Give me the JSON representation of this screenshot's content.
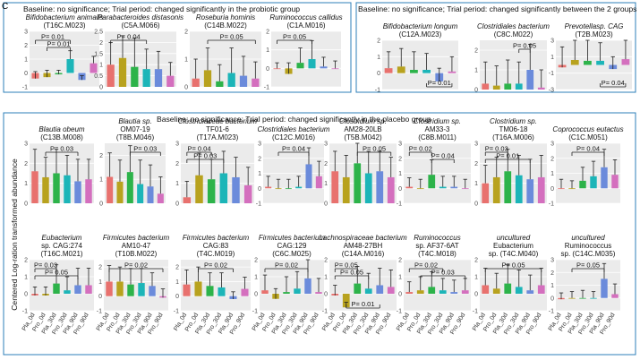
{
  "panel_letter": "C",
  "ylabel": "Centered Log-ration transformed abundance",
  "group_labels": [
    "Pla_0d",
    "Pro_0d",
    "Pla_30d",
    "Pro_30d",
    "Pla_90d",
    "Pro_90d"
  ],
  "colors": [
    "#E8716E",
    "#B8A21E",
    "#2DB34A",
    "#1CB5B8",
    "#6B8BDB",
    "#D46FBE"
  ],
  "section_titles": {
    "probiotic": "Baseline: no significance; Trial period: changed significantly in the probiotic group",
    "between": "Baseline: no significance; Trial period: changed significantly between the 2 groups",
    "placebo": "Baseline: no significance; Trial period: changed significantly in the placebo group"
  },
  "chart_data": [
    {
      "type": "bar",
      "title": [
        "Bifidobacterium animalis",
        "(T16C.M023)"
      ],
      "categories": [
        "Pla_0d",
        "Pro_0d",
        "Pla_30d",
        "Pro_30d",
        "Pla_90d",
        "Pro_90d"
      ],
      "values": [
        -0.4,
        -0.3,
        -0.1,
        1.0,
        -0.5,
        0.7
      ],
      "errors": [
        0.5,
        0.5,
        0.3,
        0.6,
        0.3,
        0.5
      ],
      "ylim": [
        -1,
        3
      ],
      "yticks": [
        -1,
        0,
        1,
        2,
        3
      ],
      "annotations": [
        {
          "text": "P= 0.01",
          "from": 0,
          "to": 3
        },
        {
          "text": "P= 0.01",
          "from": 1,
          "to": 3
        }
      ]
    },
    {
      "type": "bar",
      "title": [
        "Parabacteroides distasonis",
        "(C5A.M066)"
      ],
      "categories": [
        "Pla_0d",
        "Pro_0d",
        "Pla_30d",
        "Pro_30d",
        "Pla_90d",
        "Pro_90d"
      ],
      "values": [
        1.0,
        1.3,
        0.9,
        0.8,
        0.8,
        0.5
      ],
      "errors": [
        1.0,
        1.0,
        1.3,
        0.9,
        0.8,
        0.6
      ],
      "ylim": [
        0,
        2.5
      ],
      "yticks": [
        0,
        0.5,
        1,
        1.5,
        2,
        2.5
      ],
      "annotations": [
        {
          "text": "P= 0.04",
          "from": 0,
          "to": 3
        }
      ]
    },
    {
      "type": "bar",
      "title": [
        "Roseburia hominis",
        "(C14B.M022)"
      ],
      "categories": [
        "Pla_0d",
        "Pro_0d",
        "Pla_30d",
        "Pro_30d",
        "Pla_90d",
        "Pro_90d"
      ],
      "values": [
        0.3,
        0.6,
        0.2,
        0.5,
        0.4,
        0.3
      ],
      "errors": [
        0.7,
        0.8,
        0.6,
        0.9,
        0.7,
        0.6
      ],
      "ylim": [
        0,
        2
      ],
      "yticks": [
        0,
        1,
        2
      ],
      "annotations": [
        {
          "text": "P= 0.05",
          "from": 1,
          "to": 5
        }
      ]
    },
    {
      "type": "bar",
      "title": [
        "Ruminococcus callidus",
        "(C1A.M016)"
      ],
      "categories": [
        "Pla_0d",
        "Pro_0d",
        "Pla_30d",
        "Pro_30d",
        "Pla_90d",
        "Pro_90d"
      ],
      "values": [
        0.0,
        -0.3,
        0.3,
        0.5,
        0.1,
        0.0
      ],
      "errors": [
        0.3,
        0.6,
        0.8,
        1.0,
        0.5,
        0.4
      ],
      "ylim": [
        -1,
        2
      ],
      "yticks": [
        -1,
        0,
        1,
        2
      ],
      "annotations": [
        {
          "text": "P= 0.05",
          "from": 0,
          "to": 3
        }
      ]
    },
    {
      "type": "bar",
      "title": [
        "Bifidobacterium longum",
        "(C12A.M023)"
      ],
      "categories": [
        "Pla_0d",
        "Pro_0d",
        "Pla_30d",
        "Pro_30d",
        "Pla_90d",
        "Pro_90d"
      ],
      "values": [
        0.3,
        0.4,
        0.2,
        0.2,
        -0.5,
        0.1
      ],
      "errors": [
        1.0,
        1.1,
        1.1,
        1.0,
        0.8,
        0.9
      ],
      "ylim": [
        -1,
        2
      ],
      "yticks": [
        -1,
        0,
        1,
        2
      ],
      "annotations": [
        {
          "text": "P= 0.01",
          "from": 3,
          "to": 5,
          "below": true
        }
      ]
    },
    {
      "type": "bar",
      "title": [
        "Clostridiales bacterium",
        "(C8C.M022)"
      ],
      "categories": [
        "Pla_0d",
        "Pro_0d",
        "Pla_30d",
        "Pro_30d",
        "Pla_90d",
        "Pro_90d"
      ],
      "values": [
        0.3,
        0.2,
        0.3,
        0.3,
        1.0,
        0.1
      ],
      "errors": [
        1.1,
        1.0,
        1.2,
        1.1,
        1.3,
        0.9
      ],
      "ylim": [
        0,
        2.5
      ],
      "yticks": [
        0,
        1,
        2
      ],
      "annotations": [
        {
          "text": "P= 0.05",
          "from": 3,
          "to": 4
        }
      ]
    },
    {
      "type": "bar",
      "title": [
        "Prevotellasp. CAG",
        "(T2B.M023)"
      ],
      "categories": [
        "Pla_0d",
        "Pro_0d",
        "Pla_30d",
        "Pro_30d",
        "Pla_90d",
        "Pro_90d"
      ],
      "values": [
        -0.3,
        0.6,
        0.5,
        0.5,
        -0.5,
        0.7
      ],
      "errors": [
        2.5,
        2.4,
        2.6,
        2.2,
        1.5,
        2.3
      ],
      "ylim": [
        -3,
        3
      ],
      "yticks": [
        -3,
        -1,
        1,
        3
      ],
      "annotations": [
        {
          "text": "P= 0.04",
          "from": 3,
          "to": 5,
          "below": true
        }
      ]
    },
    {
      "type": "bar",
      "title": [
        "Blautia obeum",
        "(C13B.M008)"
      ],
      "categories": [
        "Pla_0d",
        "Pro_0d",
        "Pla_30d",
        "Pro_30d",
        "Pla_90d",
        "Pro_90d"
      ],
      "values": [
        1.6,
        1.3,
        1.5,
        1.4,
        1.1,
        1.2
      ],
      "errors": [
        1.1,
        1.0,
        1.2,
        1.0,
        1.1,
        1.0
      ],
      "ylim": [
        0,
        3
      ],
      "yticks": [
        0,
        1,
        2,
        3
      ],
      "annotations": [
        {
          "text": "P= 0.03",
          "from": 1,
          "to": 4
        }
      ]
    },
    {
      "type": "bar",
      "title": [
        "Blautia sp.",
        "OM07-19",
        "(T8B.M046)"
      ],
      "categories": [
        "Pla_0d",
        "Pro_0d",
        "Pla_30d",
        "Pro_30d",
        "Pla_90d",
        "Pro_90d"
      ],
      "values": [
        1.1,
        0.9,
        1.3,
        0.8,
        0.7,
        0.4
      ],
      "errors": [
        1.0,
        0.9,
        1.1,
        1.0,
        0.9,
        0.7
      ],
      "ylim": [
        0,
        2.5
      ],
      "yticks": [
        0,
        1,
        2
      ],
      "annotations": [
        {
          "text": "P= 0.03",
          "from": 2,
          "to": 5
        }
      ]
    },
    {
      "type": "bar",
      "title": [
        "Clostridiaceae bacterium",
        "TF01-6",
        "(T17A.M023)"
      ],
      "categories": [
        "Pla_0d",
        "Pro_0d",
        "Pla_30d",
        "Pro_30d",
        "Pla_90d",
        "Pro_90d"
      ],
      "values": [
        0.3,
        1.4,
        1.2,
        1.5,
        1.3,
        0.9
      ],
      "errors": [
        0.8,
        1.1,
        1.0,
        1.1,
        1.0,
        0.9
      ],
      "ylim": [
        0,
        3
      ],
      "yticks": [
        0,
        1,
        2,
        3
      ],
      "annotations": [
        {
          "text": "P= 0.04",
          "from": 0,
          "to": 2
        },
        {
          "text": "P= 0.03",
          "from": 0,
          "to": 3
        }
      ]
    },
    {
      "type": "bar",
      "title": [
        "Clostridiales bacterium",
        "(C12C.M016)"
      ],
      "categories": [
        "Pla_0d",
        "Pro_0d",
        "Pla_30d",
        "Pro_30d",
        "Pla_90d",
        "Pro_90d"
      ],
      "values": [
        0.1,
        0.0,
        0.0,
        0.1,
        1.6,
        0.8
      ],
      "errors": [
        0.7,
        0.6,
        0.6,
        0.7,
        1.1,
        1.0
      ],
      "ylim": [
        -1,
        3
      ],
      "yticks": [
        -1,
        0,
        1,
        2,
        3
      ],
      "annotations": [
        {
          "text": "P= 0.04",
          "from": 1,
          "to": 4
        }
      ]
    },
    {
      "type": "bar",
      "title": [
        "Clostridium sp.",
        "AM28-20LB",
        "(T5B.M042)"
      ],
      "categories": [
        "Pla_0d",
        "Pro_0d",
        "Pla_30d",
        "Pro_30d",
        "Pla_90d",
        "Pro_90d"
      ],
      "values": [
        1.6,
        1.3,
        2.0,
        1.5,
        1.6,
        1.3
      ],
      "errors": [
        1.0,
        1.1,
        1.2,
        1.1,
        1.0,
        1.0
      ],
      "ylim": [
        0,
        3
      ],
      "yticks": [
        0,
        1,
        2,
        3
      ],
      "annotations": [
        {
          "text": "P= 0.05",
          "from": 2,
          "to": 5
        }
      ]
    },
    {
      "type": "bar",
      "title": [
        "Clostridium sp.",
        "AM33-3",
        "(C8B.M011)"
      ],
      "categories": [
        "Pla_0d",
        "Pro_0d",
        "Pla_30d",
        "Pro_30d",
        "Pla_90d",
        "Pro_90d"
      ],
      "values": [
        0.1,
        0.0,
        0.9,
        0.1,
        0.1,
        0.0
      ],
      "errors": [
        0.6,
        0.6,
        1.0,
        0.7,
        0.7,
        0.6
      ],
      "ylim": [
        -1,
        3
      ],
      "yticks": [
        -1,
        0,
        1,
        2,
        3
      ],
      "annotations": [
        {
          "text": "P= 0.02",
          "from": 0,
          "to": 2
        },
        {
          "text": "P= 0.04",
          "from": 2,
          "to": 4
        }
      ]
    },
    {
      "type": "bar",
      "title": [
        "Clostridium sp.",
        "TM06-18",
        "(T16A.M006)"
      ],
      "categories": [
        "Pla_0d",
        "Pro_0d",
        "Pla_30d",
        "Pro_30d",
        "Pla_90d",
        "Pro_90d"
      ],
      "values": [
        1.0,
        1.3,
        1.6,
        1.4,
        1.2,
        1.3
      ],
      "errors": [
        0.9,
        1.0,
        1.1,
        1.0,
        1.0,
        1.1
      ],
      "ylim": [
        0,
        3
      ],
      "yticks": [
        0,
        1,
        2,
        3
      ],
      "annotations": [
        {
          "text": "P= 0.03",
          "from": 0,
          "to": 2
        },
        {
          "text": "P= 0.01",
          "from": 0,
          "to": 4
        }
      ]
    },
    {
      "type": "bar",
      "title": [
        "Coprococcus eutactus",
        "(C1C.M051)"
      ],
      "categories": [
        "Pla_0d",
        "Pro_0d",
        "Pla_30d",
        "Pro_30d",
        "Pla_90d",
        "Pro_90d"
      ],
      "values": [
        0.0,
        0.0,
        0.5,
        0.8,
        1.4,
        0.9
      ],
      "errors": [
        0.6,
        0.5,
        0.9,
        1.0,
        1.2,
        1.0
      ],
      "ylim": [
        -1,
        3
      ],
      "yticks": [
        -1,
        0,
        1,
        2,
        3
      ],
      "annotations": [
        {
          "text": "P= 0.04",
          "from": 1,
          "to": 4
        }
      ]
    },
    {
      "type": "bar",
      "title": [
        "Eubacterium",
        "sp. CAG:274",
        "(T16C.M021)"
      ],
      "categories": [
        "Pla_0d",
        "Pro_0d",
        "Pla_30d",
        "Pro_30d",
        "Pla_90d",
        "Pro_90d"
      ],
      "values": [
        -0.1,
        -0.1,
        0.6,
        0.2,
        0.5,
        0.5
      ],
      "errors": [
        0.5,
        0.5,
        1.1,
        0.8,
        1.0,
        1.0
      ],
      "ylim": [
        -1,
        2
      ],
      "yticks": [
        -1,
        0,
        1,
        2
      ],
      "annotations": [
        {
          "text": "P= 0.03",
          "from": 0,
          "to": 2
        },
        {
          "text": "P= 0.05",
          "from": 0,
          "to": 4
        }
      ]
    },
    {
      "type": "bar",
      "title": [
        "Firmicutes bacterium",
        "AM10-47",
        "(T10B.M022)"
      ],
      "categories": [
        "Pla_0d",
        "Pro_0d",
        "Pla_30d",
        "Pro_30d",
        "Pla_90d",
        "Pro_90d"
      ],
      "values": [
        1.0,
        1.0,
        0.8,
        0.9,
        0.7,
        -0.1
      ],
      "errors": [
        1.1,
        1.0,
        1.1,
        1.0,
        0.9,
        0.6
      ],
      "ylim": [
        -1,
        2.5
      ],
      "yticks": [
        -1,
        0,
        1,
        2
      ],
      "annotations": [
        {
          "text": "P= 0.02",
          "from": 0,
          "to": 5
        }
      ]
    },
    {
      "type": "bar",
      "title": [
        "Firmicutes bacterium",
        "CAG:83",
        "(T4C.M019)"
      ],
      "categories": [
        "Pla_0d",
        "Pro_0d",
        "Pla_30d",
        "Pro_30d",
        "Pla_90d",
        "Pro_90d"
      ],
      "values": [
        0.8,
        1.0,
        0.7,
        0.6,
        -0.2,
        0.5
      ],
      "errors": [
        1.0,
        1.0,
        0.9,
        1.0,
        0.5,
        0.8
      ],
      "ylim": [
        -1,
        2.5
      ],
      "yticks": [
        -1,
        0,
        1,
        2
      ],
      "annotations": [
        {
          "text": "P= 0.02",
          "from": 1,
          "to": 4
        }
      ]
    },
    {
      "type": "bar",
      "title": [
        "Firmicutes bacterium",
        "CAG:129",
        "(C6C.M025)"
      ],
      "categories": [
        "Pla_0d",
        "Pro_0d",
        "Pla_30d",
        "Pro_30d",
        "Pla_90d",
        "Pro_90d"
      ],
      "values": [
        0.2,
        -0.3,
        0.1,
        0.3,
        0.9,
        0.1
      ],
      "errors": [
        0.9,
        0.6,
        0.9,
        1.0,
        1.3,
        0.8
      ],
      "ylim": [
        -1,
        2
      ],
      "yticks": [
        -1,
        0,
        1,
        2
      ],
      "annotations": [
        {
          "text": "P= 0.02",
          "from": 0,
          "to": 4
        }
      ]
    },
    {
      "type": "bar",
      "title": [
        "Lachnospiraceae bacterium",
        "AM48-27BH",
        "(C14A.M016)"
      ],
      "categories": [
        "Pla_0d",
        "Pro_0d",
        "Pla_30d",
        "Pro_30d",
        "Pla_90d",
        "Pro_90d"
      ],
      "values": [
        -0.1,
        -0.8,
        0.6,
        0.3,
        0.5,
        0.4
      ],
      "errors": [
        0.6,
        0.3,
        1.0,
        0.9,
        1.0,
        1.0
      ],
      "ylim": [
        -1,
        2
      ],
      "yticks": [
        -1,
        0,
        1,
        2
      ],
      "annotations": [
        {
          "text": "P= 0.05",
          "from": 0,
          "to": 2
        },
        {
          "text": "P= 0.05",
          "from": 0,
          "to": 3
        },
        {
          "text": "P= 0.01",
          "from": 1,
          "to": 4,
          "below": true
        }
      ]
    },
    {
      "type": "bar",
      "title": [
        "Ruminococcus",
        "sp. AF37-6AT",
        "(T4C.M018)"
      ],
      "categories": [
        "Pla_0d",
        "Pro_0d",
        "Pla_30d",
        "Pro_30d",
        "Pla_90d",
        "Pro_90d"
      ],
      "values": [
        0.1,
        0.2,
        0.4,
        0.2,
        0.1,
        0.2
      ],
      "errors": [
        0.6,
        0.8,
        0.9,
        0.7,
        0.7,
        0.7
      ],
      "ylim": [
        -1,
        2
      ],
      "yticks": [
        -1,
        0,
        1,
        2
      ],
      "annotations": [
        {
          "text": "P= 0.02",
          "from": 0,
          "to": 3
        },
        {
          "text": "P= 0.03",
          "from": 1,
          "to": 5
        }
      ]
    },
    {
      "type": "bar",
      "title": [
        "uncultured",
        "Eubacterium",
        "sp. (T4C.M040)"
      ],
      "categories": [
        "Pla_0d",
        "Pro_0d",
        "Pla_30d",
        "Pro_30d",
        "Pla_90d",
        "Pro_90d"
      ],
      "values": [
        0.5,
        0.3,
        0.6,
        0.4,
        0.2,
        0.5
      ],
      "errors": [
        1.0,
        0.9,
        1.1,
        1.0,
        0.9,
        1.0
      ],
      "ylim": [
        -1,
        2
      ],
      "yticks": [
        -1,
        0,
        1,
        2
      ],
      "annotations": [
        {
          "text": "P= 0.05",
          "from": 0,
          "to": 5
        }
      ]
    },
    {
      "type": "bar",
      "title": [
        "uncultured",
        "Ruminococcus",
        "sp. (C14C.M035)"
      ],
      "categories": [
        "Pla_0d",
        "Pro_0d",
        "Pla_30d",
        "Pro_30d",
        "Pla_90d",
        "Pro_90d"
      ],
      "values": [
        -0.1,
        0.0,
        0.0,
        0.0,
        1.5,
        0.3
      ],
      "errors": [
        0.5,
        0.5,
        0.6,
        0.5,
        1.2,
        0.8
      ],
      "ylim": [
        -1,
        3
      ],
      "yticks": [
        -1,
        0,
        1,
        2,
        3
      ],
      "annotations": [
        {
          "text": "P= 0.05",
          "from": 1,
          "to": 4
        }
      ]
    }
  ]
}
